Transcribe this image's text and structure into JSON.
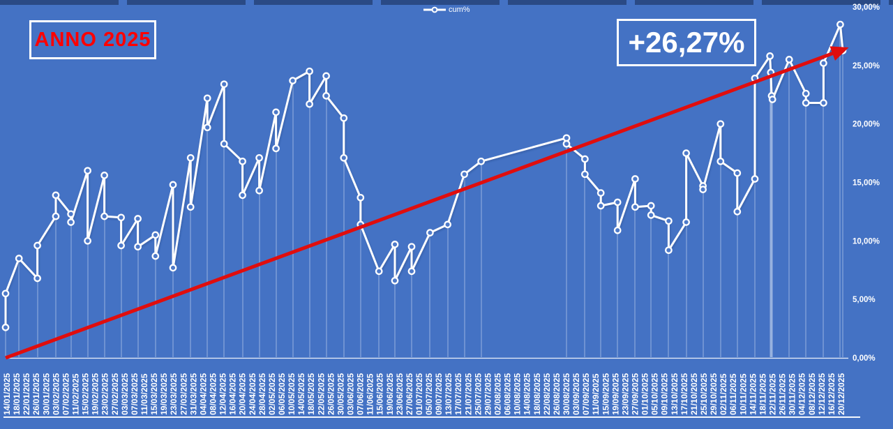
{
  "annotations": {
    "left": {
      "text": "ANNO 2025",
      "color": "#ff0000",
      "border_color": "#ffffff"
    },
    "right": {
      "text": "+26,27%",
      "color": "#ffffff",
      "border_color": "#ffffff"
    }
  },
  "legend": {
    "label": "cum%"
  },
  "colors": {
    "background": "#4472C4",
    "series_line": "#ffffff",
    "marker_fill": "#4e7ac9",
    "trend_line": "#e00d0d",
    "axis_text": "#ffffff"
  },
  "chart_data": {
    "type": "line",
    "title": "",
    "xlabel": "",
    "ylabel": "",
    "ylim": [
      0,
      30
    ],
    "grid": "drop-lines",
    "legend_position": "top-center",
    "y_ticks": [
      {
        "v": 30,
        "label": "30,00%"
      },
      {
        "v": 25,
        "label": "25,00%"
      },
      {
        "v": 20,
        "label": "20,00%"
      },
      {
        "v": 15,
        "label": "15,00%"
      },
      {
        "v": 10,
        "label": "10,00%"
      },
      {
        "v": 5,
        "label": "5,00%"
      },
      {
        "v": 0,
        "label": "0,00%"
      }
    ],
    "x_ticks": [
      "14/01/2025",
      "18/01/2025",
      "22/01/2025",
      "26/01/2025",
      "30/01/2025",
      "03/02/2025",
      "07/02/2025",
      "11/02/2025",
      "15/02/2025",
      "19/02/2025",
      "23/02/2025",
      "27/02/2025",
      "03/03/2025",
      "07/03/2025",
      "11/03/2025",
      "15/03/2025",
      "19/03/2025",
      "23/03/2025",
      "27/03/2025",
      "31/03/2025",
      "04/04/2025",
      "08/04/2025",
      "12/04/2025",
      "16/04/2025",
      "20/04/2025",
      "24/04/2025",
      "28/04/2025",
      "02/05/2025",
      "06/05/2025",
      "10/05/2025",
      "14/05/2025",
      "18/05/2025",
      "22/05/2025",
      "26/05/2025",
      "30/05/2025",
      "03/06/2025",
      "07/06/2025",
      "11/06/2025",
      "15/06/2025",
      "19/06/2025",
      "23/06/2025",
      "27/06/2025",
      "01/07/2025",
      "05/07/2025",
      "09/07/2025",
      "13/07/2025",
      "17/07/2025",
      "21/07/2025",
      "25/07/2025",
      "29/07/2025",
      "02/08/2025",
      "06/08/2025",
      "10/08/2025",
      "14/08/2025",
      "18/08/2025",
      "22/08/2025",
      "26/08/2025",
      "30/08/2025",
      "03/09/2025",
      "07/09/2025",
      "11/09/2025",
      "15/09/2025",
      "19/09/2025",
      "23/09/2025",
      "27/09/2025",
      "01/10/2025",
      "05/10/2025",
      "09/10/2025",
      "13/10/2025",
      "17/10/2025",
      "21/10/2025",
      "25/10/2025",
      "29/10/2025",
      "02/11/2025",
      "06/11/2025",
      "10/11/2025",
      "14/11/2025",
      "18/11/2025",
      "22/11/2025",
      "26/11/2025",
      "30/11/2025",
      "04/12/2025",
      "08/12/2025",
      "12/12/2025",
      "16/12/2025",
      "20/12/2025"
    ],
    "series": [
      {
        "name": "cum%",
        "style": "line-markers-droplines",
        "points": [
          [
            0,
            2.6
          ],
          [
            0,
            5.5
          ],
          [
            1.6,
            8.5
          ],
          [
            3.8,
            6.8
          ],
          [
            3.8,
            9.6
          ],
          [
            6,
            12.1
          ],
          [
            6,
            13.9
          ],
          [
            7.8,
            12.3
          ],
          [
            7.8,
            11.6
          ],
          [
            9.8,
            16
          ],
          [
            9.8,
            10
          ],
          [
            11.8,
            15.6
          ],
          [
            11.8,
            12.1
          ],
          [
            13.8,
            12
          ],
          [
            13.8,
            9.6
          ],
          [
            15.8,
            11.9
          ],
          [
            15.8,
            9.5
          ],
          [
            17.9,
            10.5
          ],
          [
            17.9,
            8.7
          ],
          [
            20,
            14.8
          ],
          [
            20,
            7.7
          ],
          [
            22.1,
            17.1
          ],
          [
            22.1,
            12.9
          ],
          [
            24.1,
            22.2
          ],
          [
            24.1,
            19.7
          ],
          [
            26.1,
            23.4
          ],
          [
            26.1,
            18.3
          ],
          [
            28.3,
            16.8
          ],
          [
            28.3,
            13.9
          ],
          [
            30.3,
            17.1
          ],
          [
            30.3,
            14.3
          ],
          [
            32.3,
            21
          ],
          [
            32.3,
            17.9
          ],
          [
            34.3,
            23.7
          ],
          [
            36.3,
            24.5
          ],
          [
            36.3,
            21.7
          ],
          [
            38.3,
            24.1
          ],
          [
            38.3,
            22.4
          ],
          [
            40.4,
            20.5
          ],
          [
            40.4,
            17.1
          ],
          [
            42.4,
            13.7
          ],
          [
            42.4,
            11.4
          ],
          [
            44.6,
            7.4
          ],
          [
            46.5,
            9.7
          ],
          [
            46.5,
            6.6
          ],
          [
            48.5,
            9.5
          ],
          [
            48.5,
            7.4
          ],
          [
            50.7,
            10.7
          ],
          [
            52.8,
            11.4
          ],
          [
            54.8,
            15.7
          ],
          [
            56.8,
            16.8
          ],
          [
            67,
            18.8
          ],
          [
            67,
            18.3
          ],
          [
            69.2,
            17
          ],
          [
            69.2,
            15.7
          ],
          [
            71.1,
            14.1
          ],
          [
            71.1,
            13
          ],
          [
            73.1,
            13.3
          ],
          [
            73.1,
            10.9
          ],
          [
            75.2,
            15.3
          ],
          [
            75.2,
            12.9
          ],
          [
            77.1,
            13
          ],
          [
            77.1,
            12.2
          ],
          [
            79.2,
            11.7
          ],
          [
            79.2,
            9.2
          ],
          [
            81.3,
            11.6
          ],
          [
            81.3,
            17.5
          ],
          [
            83.3,
            14.7
          ],
          [
            83.3,
            14.4
          ],
          [
            85.4,
            20
          ],
          [
            85.4,
            16.8
          ],
          [
            87.4,
            15.8
          ],
          [
            87.4,
            12.5
          ],
          [
            89.5,
            15.3
          ],
          [
            89.5,
            23.9
          ],
          [
            91.3,
            25.8
          ],
          [
            91.4,
            24.4
          ],
          [
            91.5,
            22.4
          ],
          [
            91.6,
            22.1
          ],
          [
            93.6,
            25.5
          ],
          [
            95.6,
            22.6
          ],
          [
            95.6,
            21.8
          ],
          [
            97.7,
            21.8
          ],
          [
            97.7,
            25.2
          ],
          [
            99.7,
            28.5
          ],
          [
            100,
            26.27
          ]
        ]
      },
      {
        "name": "trend",
        "style": "straight-arrow",
        "points": [
          [
            0,
            0
          ],
          [
            99.7,
            26.27
          ]
        ]
      }
    ]
  }
}
